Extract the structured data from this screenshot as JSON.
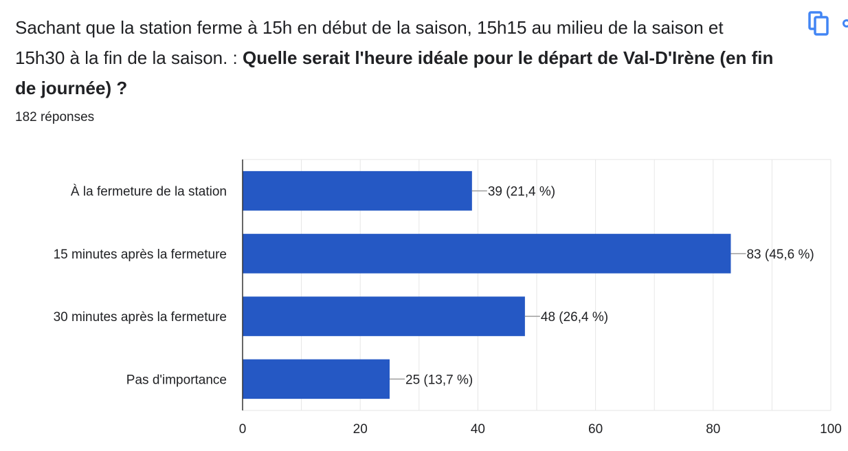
{
  "question": {
    "intro": "Sachant que la station ferme à 15h en début de la saison, 15h15 au milieu de la saison et 15h30 à la fin de la saison. : ",
    "bold": "Quelle serait l'heure idéale pour le départ de Val-D'Irène (en fin de journée) ?"
  },
  "responses_count": "182 réponses",
  "toolbar": {
    "copy_icon": "copy-icon",
    "accent_color": "#4285f4"
  },
  "chart_data": {
    "type": "bar",
    "orientation": "horizontal",
    "categories": [
      "À la fermeture de la station",
      "15 minutes après la fermeture",
      "30 minutes après la fermeture",
      "Pas d'importance"
    ],
    "values": [
      39,
      83,
      48,
      25
    ],
    "data_labels": [
      "39 (21,4 %)",
      "83 (45,6 %)",
      "48 (26,4 %)",
      "25 (13,7 %)"
    ],
    "xlim": [
      0,
      100
    ],
    "xticks": [
      0,
      20,
      40,
      60,
      80,
      100
    ],
    "bar_color": "#2558c4",
    "grid": true
  }
}
